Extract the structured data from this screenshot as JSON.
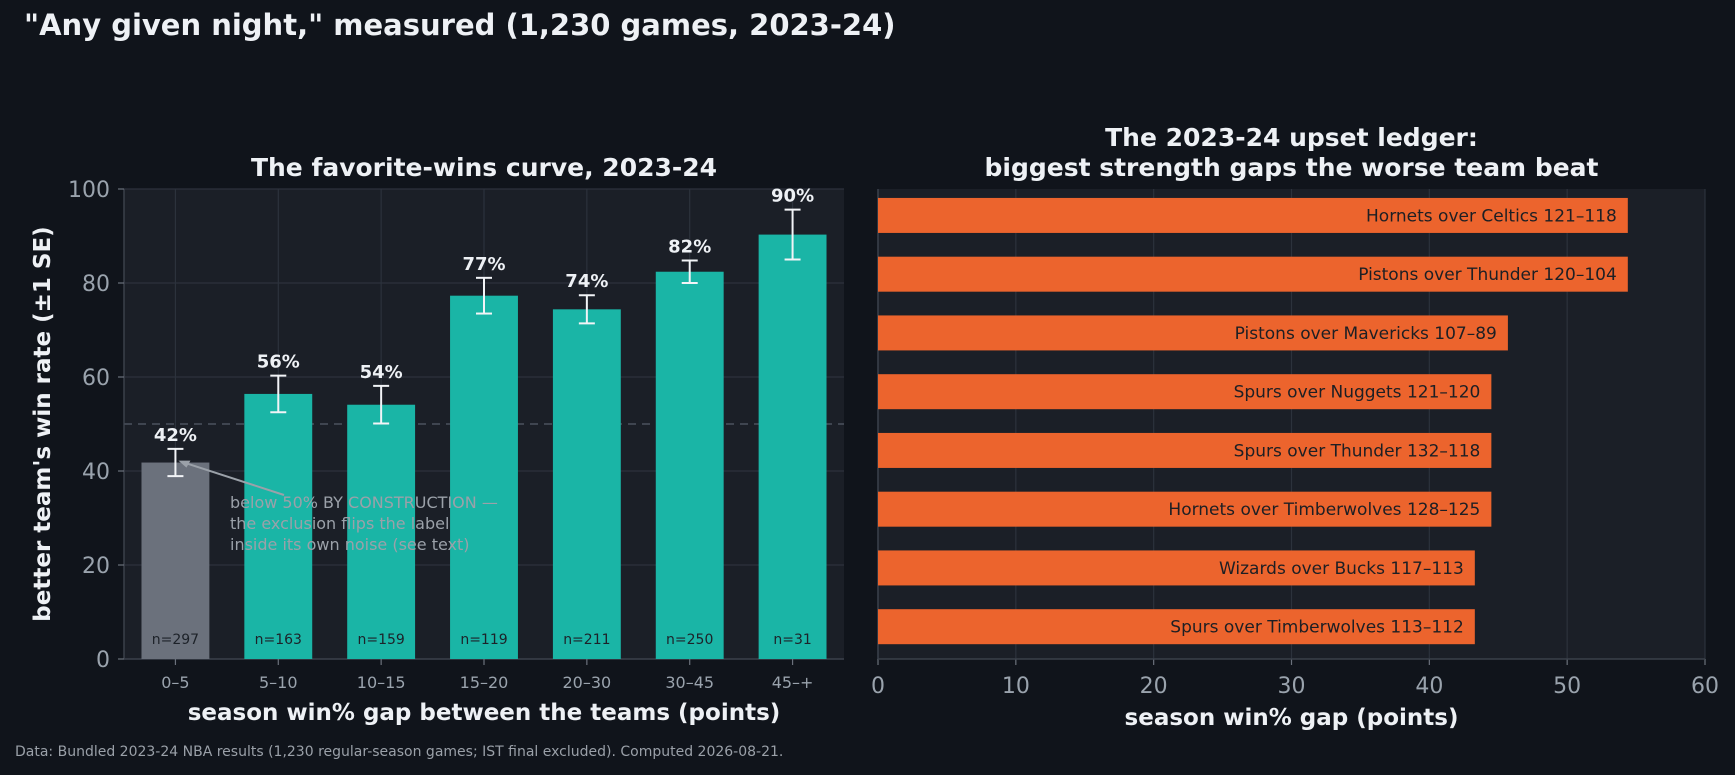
{
  "title": "\"Any given night,\" measured (1,230 games, 2023-24)",
  "footer": "Data: Bundled 2023-24 NBA results (1,230 regular-season games; IST final excluded). Computed 2026-08-21.",
  "colors": {
    "background": "#10141b",
    "panel": "#1b1f27",
    "bar_teal": "#1ab5a6",
    "bar_gray": "#6b717c",
    "bar_orange": "#ec642d",
    "text": "#eef1f5",
    "muted": "#9aa3ad"
  },
  "chart_data": [
    {
      "type": "bar",
      "title": "The favorite-wins curve, 2023-24",
      "xlabel": "season win% gap between the teams (points)",
      "ylabel": "better team's win rate (±1 SE)",
      "ylim": [
        0,
        100
      ],
      "yticks": [
        "0",
        "20",
        "40",
        "60",
        "80",
        "100"
      ],
      "grid": true,
      "reference_line": 50,
      "categories": [
        "0–5",
        "5–10",
        "10–15",
        "15–20",
        "20–30",
        "30–45",
        "45–+"
      ],
      "values": [
        41.8,
        56.4,
        54.1,
        77.3,
        74.4,
        82.4,
        90.3
      ],
      "errors": [
        2.9,
        3.9,
        4.0,
        3.8,
        3.0,
        2.4,
        5.3
      ],
      "value_labels": [
        "42%",
        "56%",
        "54%",
        "77%",
        "74%",
        "82%",
        "90%"
      ],
      "n_labels": [
        "n=297",
        "n=163",
        "n=159",
        "n=119",
        "n=211",
        "n=250",
        "n=31"
      ],
      "highlight_index": 0,
      "annotation": {
        "lines": [
          "below 50% BY CONSTRUCTION —",
          "the exclusion flips the label",
          "inside its own noise (see text)"
        ]
      }
    },
    {
      "type": "bar",
      "orientation": "horizontal",
      "title_lines": [
        "The 2023-24 upset ledger:",
        "biggest strength gaps the worse team beat"
      ],
      "xlabel": "season win% gap (points)",
      "xlim": [
        0,
        60
      ],
      "xticks": [
        "0",
        "10",
        "20",
        "30",
        "40",
        "50",
        "60"
      ],
      "grid": true,
      "categories": [
        "Hornets over Celtics  121–118",
        "Pistons over Thunder  120–104",
        "Pistons over Mavericks  107–89",
        "Spurs over Nuggets  121–120",
        "Spurs over Thunder  132–118",
        "Hornets over Timberwolves  128–125",
        "Wizards over Bucks  117–113",
        "Spurs over Timberwolves  113–112"
      ],
      "values": [
        54.4,
        54.4,
        45.7,
        44.5,
        44.5,
        44.5,
        43.3,
        43.3
      ]
    }
  ]
}
